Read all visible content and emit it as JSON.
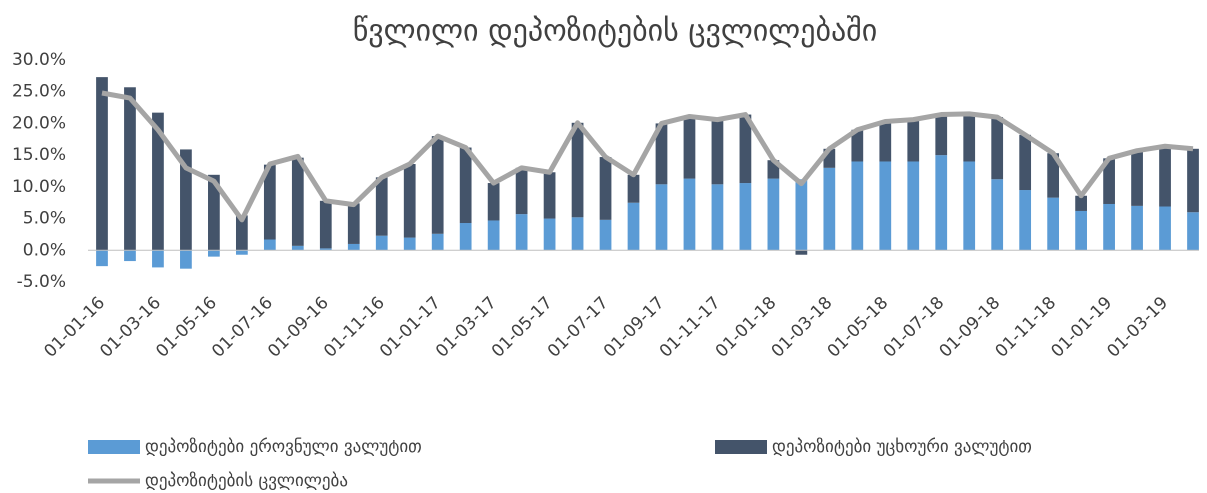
{
  "chart_data": {
    "type": "stacked-bar-line",
    "title": "წვლილი დეპოზიტების ცვლილებაში",
    "categories": [
      "01-01-16",
      null,
      "01-03-16",
      null,
      "01-05-16",
      null,
      "01-07-16",
      null,
      "01-09-16",
      null,
      "01-11-16",
      null,
      "01-01-17",
      null,
      "01-03-17",
      null,
      "01-05-17",
      null,
      "01-07-17",
      null,
      "01-09-17",
      null,
      "01-11-17",
      null,
      "01-01-18",
      null,
      "01-03-18",
      null,
      "01-05-18",
      null,
      "01-07-18",
      null,
      "01-09-18",
      null,
      "01-11-18",
      null,
      "01-01-19",
      null,
      "01-03-19",
      null
    ],
    "series": [
      {
        "name": "დეპოზიტები ეროვნული ვალუტით",
        "color": "#5b9bd5",
        "kind": "bar",
        "values": [
          -2.5,
          -1.7,
          -2.7,
          -2.9,
          -1.0,
          -0.7,
          1.7,
          0.7,
          0.3,
          1.0,
          2.3,
          2.0,
          2.6,
          4.3,
          4.7,
          5.7,
          5.0,
          5.2,
          4.8,
          7.5,
          10.4,
          11.3,
          10.4,
          10.6,
          11.3,
          11.2,
          13.0,
          14.0,
          14.0,
          14.0,
          15.0,
          14.0,
          11.2,
          9.5,
          8.3,
          6.2,
          7.3,
          7.0,
          6.9,
          6.0
        ]
      },
      {
        "name": "დეპოზიტები უცხოური ვალუტით",
        "color": "#44546a",
        "kind": "bar",
        "values": [
          27.3,
          25.7,
          21.7,
          15.9,
          11.9,
          5.5,
          11.8,
          13.9,
          7.5,
          6.4,
          9.2,
          11.6,
          15.4,
          11.9,
          5.9,
          7.3,
          7.3,
          14.9,
          9.9,
          4.4,
          9.6,
          9.8,
          10.2,
          10.8,
          2.9,
          -0.7,
          3.0,
          5.0,
          6.3,
          6.6,
          6.4,
          7.5,
          9.8,
          8.7,
          7.0,
          2.4,
          7.2,
          8.7,
          9.5,
          10.0
        ]
      },
      {
        "name": "დეპოზიტების ცვლილება",
        "color": "#a5a5a5",
        "kind": "line",
        "values": [
          24.8,
          24.0,
          19.0,
          13.0,
          10.9,
          4.8,
          13.6,
          14.8,
          7.8,
          7.2,
          11.5,
          13.6,
          18.0,
          16.2,
          10.6,
          13.0,
          12.3,
          20.1,
          14.7,
          11.9,
          20.0,
          21.1,
          20.6,
          21.4,
          14.2,
          10.5,
          16.0,
          19.0,
          20.3,
          20.6,
          21.4,
          21.5,
          21.0,
          18.2,
          15.3,
          8.6,
          14.5,
          15.7,
          16.4,
          16.0
        ]
      }
    ],
    "ylim": [
      -5,
      30
    ],
    "yticks": [
      {
        "value": -5,
        "label": "-5.0%"
      },
      {
        "value": 0,
        "label": "0.0%"
      },
      {
        "value": 5,
        "label": "5.0%"
      },
      {
        "value": 10,
        "label": "10.0%"
      },
      {
        "value": 15,
        "label": "15.0%"
      },
      {
        "value": 20,
        "label": "20.0%"
      },
      {
        "value": 25,
        "label": "25.0%"
      },
      {
        "value": 30,
        "label": "30.0%"
      }
    ],
    "grid": false
  }
}
